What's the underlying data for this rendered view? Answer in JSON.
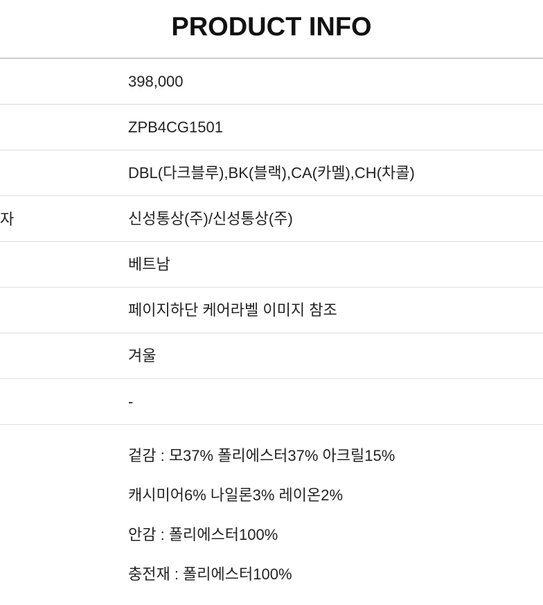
{
  "title": "PRODUCT INFO",
  "rows": [
    {
      "label": "",
      "value": "398,000"
    },
    {
      "label": "",
      "value": "ZPB4CG1501"
    },
    {
      "label": "",
      "value": "DBL(다크블루),BK(블랙),CA(카멜),CH(차콜)"
    },
    {
      "label": "자",
      "value": "신성통상(주)/신성통상(주)"
    },
    {
      "label": "",
      "value": "베트남"
    },
    {
      "label": "",
      "value": "페이지하단 케어라벨 이미지 참조"
    },
    {
      "label": "",
      "value": "겨울"
    },
    {
      "label": "",
      "value": "-"
    }
  ],
  "material_lines": [
    "겉감 : 모37% 폴리에스터37% 아크릴15%",
    "캐시미어6% 나일론3% 레이온2%",
    "안감 : 폴리에스터100%",
    "충전재 : 폴리에스터100%"
  ],
  "styling": {
    "title_fontsize": 38,
    "title_fontweight": 900,
    "title_color": "#111111",
    "body_fontsize": 22,
    "body_color": "#222222",
    "border_color": "#dddddd",
    "top_border_color": "#cccccc",
    "background_color": "#ffffff",
    "label_col_width": 185
  }
}
